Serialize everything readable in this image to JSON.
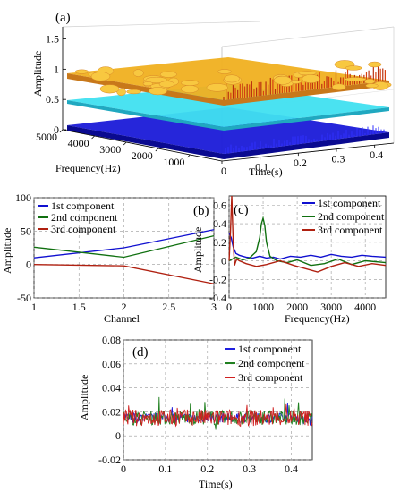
{
  "chart_data": [
    {
      "panel": "(a)",
      "type": "surface",
      "xlabel": "Time(s)",
      "ylabel": "Frequency(Hz)",
      "zlabel": "Amplitude",
      "xticks": [
        "0",
        "0.1",
        "0.2",
        "0.3",
        "0.4"
      ],
      "yticks": [
        "1000",
        "2000",
        "3000",
        "4000",
        "5000"
      ],
      "zticks": [
        "0",
        "0.5",
        "1",
        "1.5"
      ],
      "xlim": [
        0,
        0.45
      ],
      "ylim": [
        0,
        5000
      ],
      "zlim": [
        0,
        1.7
      ],
      "layers": [
        {
          "color": "#1a1ad8",
          "level": 0.05
        },
        {
          "color": "#40e0f0",
          "level": 0.5
        },
        {
          "color": "#f0b020",
          "level": 1.0
        }
      ]
    },
    {
      "panel": "(b)",
      "type": "line",
      "xlabel": "Channel",
      "ylabel": "Amplitude",
      "xlim": [
        1,
        3
      ],
      "ylim": [
        -50,
        100
      ],
      "xticks": [
        "1",
        "1.5",
        "2",
        "2.5",
        "3"
      ],
      "yticks": [
        "-50",
        "0",
        "50",
        "100"
      ],
      "legend_position": "top-left",
      "x": [
        1,
        2,
        3
      ],
      "series": [
        {
          "name": "1st component",
          "color": "#1010d0",
          "values": [
            10,
            25,
            52
          ]
        },
        {
          "name": "2nd component",
          "color": "#107010",
          "values": [
            26,
            11,
            43
          ]
        },
        {
          "name": "3rd component",
          "color": "#b02010",
          "values": [
            0,
            -2,
            -29
          ]
        }
      ]
    },
    {
      "panel": "(c)",
      "type": "line",
      "xlabel": "Frequency(Hz)",
      "ylabel": "Amplitude",
      "xlim": [
        0,
        4600
      ],
      "ylim": [
        -0.4,
        0.7
      ],
      "xticks": [
        "0",
        "1000",
        "2000",
        "3000",
        "4000"
      ],
      "yticks": [
        "-0.4",
        "-0.2",
        "0",
        "0.2",
        "0.4",
        "0.6"
      ],
      "legend_position": "top-right",
      "series": [
        {
          "name": "1st component",
          "color": "#1010d0",
          "x": [
            0,
            60,
            120,
            200,
            300,
            400,
            500,
            700,
            900,
            1100,
            1300,
            1500,
            1800,
            2100,
            2400,
            2700,
            3000,
            3300,
            3600,
            3900,
            4200,
            4600
          ],
          "values": [
            0.3,
            0.25,
            0.15,
            0.08,
            0.06,
            0.05,
            0.04,
            0.03,
            0.05,
            0.03,
            0.04,
            0.02,
            0.05,
            0.04,
            0.06,
            0.04,
            0.07,
            0.05,
            0.04,
            0.06,
            0.05,
            0.04
          ]
        },
        {
          "name": "2nd component",
          "color": "#107010",
          "x": [
            0,
            100,
            200,
            400,
            600,
            800,
            900,
            950,
            1000,
            1050,
            1100,
            1200,
            1400,
            1700,
            2000,
            2400,
            2800,
            3200,
            3600,
            4000,
            4600
          ],
          "values": [
            0,
            0.02,
            0.04,
            0.01,
            0.03,
            0.1,
            0.25,
            0.4,
            0.46,
            0.38,
            0.2,
            0.05,
            0.0,
            -0.02,
            0.01,
            -0.05,
            -0.03,
            0.02,
            -0.04,
            0.0,
            -0.02
          ]
        },
        {
          "name": "3rd component",
          "color": "#b02010",
          "x": [
            0,
            40,
            80,
            120,
            160,
            220,
            300,
            500,
            800,
            1100,
            1500,
            1900,
            2200,
            2600,
            3000,
            3400,
            3800,
            4200,
            4600
          ],
          "values": [
            0,
            0.3,
            0.7,
            0.2,
            -0.05,
            0.02,
            0.0,
            -0.03,
            -0.06,
            -0.04,
            0.0,
            -0.05,
            -0.08,
            -0.12,
            -0.06,
            -0.02,
            -0.06,
            -0.03,
            -0.05
          ]
        }
      ]
    },
    {
      "panel": "(d)",
      "type": "line",
      "xlabel": "Time(s)",
      "ylabel": "Amplitude",
      "xlim": [
        0,
        0.45
      ],
      "ylim": [
        -0.02,
        0.08
      ],
      "xticks": [
        "0",
        "0.1",
        "0.2",
        "0.3",
        "0.4"
      ],
      "yticks": [
        "-0.02",
        "0",
        "0.02",
        "0.04",
        "0.06",
        "0.08"
      ],
      "legend_position": "top-right",
      "series": [
        {
          "name": "1st component",
          "color": "#2020e0",
          "baseline": 0.015,
          "noise": 0.004
        },
        {
          "name": "2nd component",
          "color": "#208020",
          "baseline": 0.015,
          "noise": 0.006
        },
        {
          "name": "3rd component",
          "color": "#d02020",
          "baseline": 0.015,
          "noise": 0.007
        }
      ]
    }
  ]
}
